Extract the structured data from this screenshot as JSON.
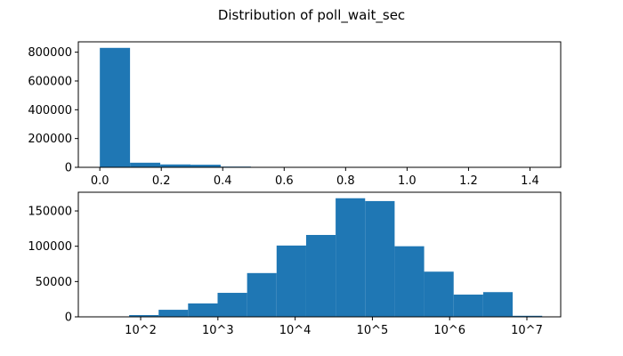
{
  "title": "Distribution of poll_wait_sec",
  "chart_data": [
    {
      "type": "histogram",
      "color": "#1f77b4",
      "bins": [
        0,
        0.0983,
        0.1967,
        0.295,
        0.3933,
        0.4917,
        0.59,
        0.6883,
        0.7867,
        0.885,
        0.9833,
        1.0817,
        1.18,
        1.2783,
        1.3767,
        1.475
      ],
      "values": [
        830000,
        32000,
        20000,
        18000,
        5000,
        1500,
        500,
        300,
        200,
        100,
        50,
        30,
        20,
        10,
        5
      ],
      "xlim": [
        -0.07,
        1.5
      ],
      "ylim": [
        0,
        872000
      ],
      "xticks": [
        {
          "value": 0,
          "label": "0.0"
        },
        0.2,
        0.4,
        0.6,
        0.8,
        {
          "value": 1,
          "label": "1.0"
        },
        1.2,
        1.4
      ],
      "yticks": [
        0,
        200000,
        400000,
        600000,
        800000
      ]
    },
    {
      "type": "histogram",
      "color": "#1f77b4",
      "xscale": "log",
      "bins": [
        71,
        171,
        411,
        991,
        2388,
        5754,
        13868,
        33420,
        80538,
        194089,
        467735,
        1127197,
        2716439,
        6546362,
        15776112
      ],
      "values": [
        2500,
        10000,
        19000,
        34000,
        62000,
        101000,
        116000,
        168000,
        164000,
        100000,
        64000,
        31500,
        35000,
        1500
      ],
      "xlim": [
        15.6,
        27400000
      ],
      "ylim": [
        0,
        176500
      ],
      "xticks": [
        {
          "value": 100,
          "label": "10^2"
        },
        {
          "value": 1000,
          "label": "10^3"
        },
        {
          "value": 10000,
          "label": "10^4"
        },
        {
          "value": 100000,
          "label": "10^5"
        },
        {
          "value": 1000000,
          "label": "10^6"
        },
        {
          "value": 10000000,
          "label": "10^7"
        }
      ],
      "yticks": [
        0,
        50000,
        100000,
        150000
      ]
    }
  ]
}
